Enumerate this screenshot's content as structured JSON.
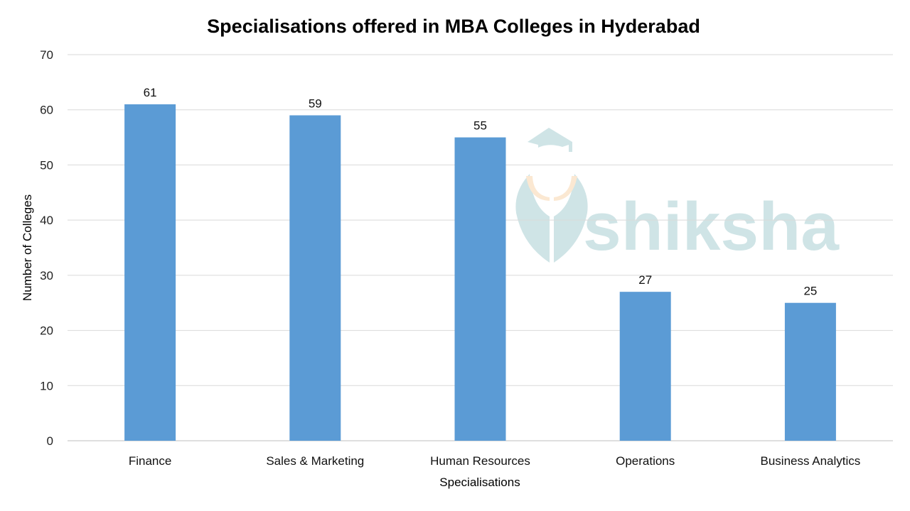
{
  "chart_data": {
    "type": "bar",
    "title": "Specialisations offered in MBA Colleges in Hyderabad",
    "xlabel": "Specialisations",
    "ylabel": "Number of Colleges",
    "categories": [
      "Finance",
      "Sales & Marketing",
      "Human Resources",
      "Operations",
      "Business Analytics"
    ],
    "values": [
      61,
      59,
      55,
      27,
      25
    ],
    "data_labels": [
      "61",
      "59",
      "55",
      "27",
      "25"
    ],
    "ylim": [
      0,
      70
    ],
    "yticks": [
      "0",
      "10",
      "20",
      "30",
      "40",
      "50",
      "60",
      "70"
    ],
    "grid": true,
    "legend": "none",
    "bar_color": "#5B9BD5",
    "watermark": "shiksha"
  }
}
